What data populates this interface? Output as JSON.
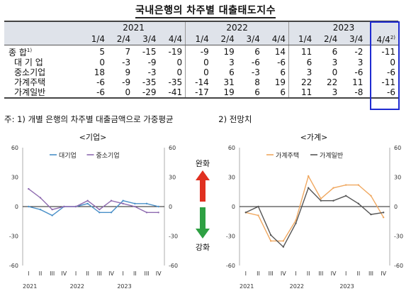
{
  "page_title": "국내은행의 차주별 대출태도지수",
  "table": {
    "years": [
      "2021",
      "2022",
      "2023"
    ],
    "quarters": [
      "1/4",
      "2/4",
      "3/4",
      "4/4",
      "1/4",
      "2/4",
      "3/4",
      "4/4",
      "1/4",
      "2/4",
      "3/4",
      "4/4"
    ],
    "forecast_mark": "2)",
    "rows": [
      {
        "label": "종  합",
        "note": "1)",
        "values": [
          "5",
          "7",
          "-15",
          "-19",
          "-9",
          "19",
          "6",
          "14",
          "11",
          "6",
          "-2",
          "-11"
        ]
      },
      {
        "label": "대 기 업",
        "note": "",
        "values": [
          "0",
          "-3",
          "-9",
          "0",
          "0",
          "3",
          "-6",
          "-6",
          "6",
          "3",
          "3",
          "0"
        ]
      },
      {
        "label": "중소기업",
        "note": "",
        "values": [
          "18",
          "9",
          "-3",
          "0",
          "0",
          "6",
          "-3",
          "6",
          "3",
          "0",
          "-6",
          "-6"
        ]
      },
      {
        "label": "가계주택",
        "note": "",
        "values": [
          "-6",
          "-9",
          "-35",
          "-35",
          "-14",
          "31",
          "8",
          "19",
          "22",
          "22",
          "11",
          "-11"
        ]
      },
      {
        "label": "가계일반",
        "note": "",
        "values": [
          "-6",
          "0",
          "-29",
          "-41",
          "-17",
          "19",
          "6",
          "6",
          "11",
          "3",
          "-8",
          "-6"
        ]
      }
    ]
  },
  "footnotes": {
    "note1": "주: 1) 개별 은행의 차주별 대출금액으로 가중평균",
    "note2": "2) 전망치"
  },
  "arrows": {
    "up_label": "완화",
    "down_label": "강화",
    "up_color": "#e03020",
    "down_color": "#2ea043"
  },
  "chart_data": [
    {
      "type": "line",
      "title": "<기업>",
      "x": [
        "I",
        "II",
        "III",
        "IV",
        "I",
        "II",
        "III",
        "IV",
        "I",
        "II",
        "III",
        "IV"
      ],
      "year_labels": [
        "2021",
        "2022",
        "2023"
      ],
      "ylim": [
        -60,
        60
      ],
      "yticks": [
        -60,
        -30,
        0,
        30,
        60
      ],
      "legend_position": "top-left",
      "series": [
        {
          "name": "대기업",
          "color": "#4a90c8",
          "values": [
            0,
            -3,
            -9,
            0,
            0,
            3,
            -6,
            -6,
            6,
            3,
            3,
            0
          ]
        },
        {
          "name": "중소기업",
          "color": "#8e6bb0",
          "values": [
            18,
            9,
            -3,
            0,
            0,
            6,
            -3,
            6,
            3,
            0,
            -6,
            -6
          ]
        }
      ]
    },
    {
      "type": "line",
      "title": "<가계>",
      "x": [
        "I",
        "II",
        "III",
        "IV",
        "I",
        "II",
        "III",
        "IV",
        "I",
        "II",
        "III",
        "IV"
      ],
      "year_labels": [
        "2021",
        "2022",
        "2023"
      ],
      "ylim": [
        -60,
        60
      ],
      "yticks": [
        -60,
        -30,
        0,
        30,
        60
      ],
      "legend_position": "top-left",
      "series": [
        {
          "name": "가계주택",
          "color": "#f0a860",
          "values": [
            -6,
            -9,
            -35,
            -35,
            -14,
            31,
            8,
            19,
            22,
            22,
            11,
            -11
          ]
        },
        {
          "name": "가계일반",
          "color": "#555555",
          "values": [
            -6,
            0,
            -29,
            -41,
            -17,
            19,
            6,
            6,
            11,
            3,
            -8,
            -6
          ]
        }
      ]
    }
  ]
}
